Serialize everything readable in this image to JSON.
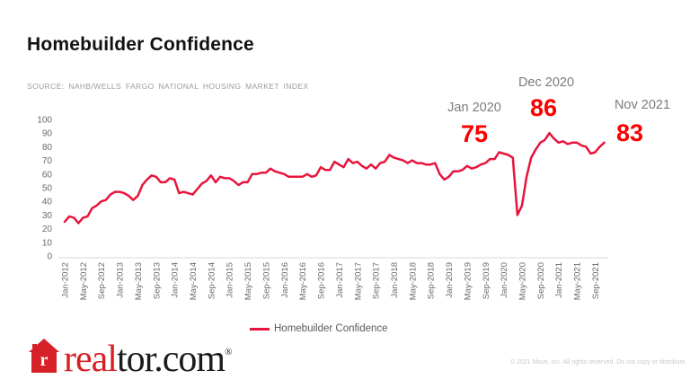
{
  "header": {
    "title": "Homebuilder Confidence",
    "source": "SOURCE: NAHB/WELLS FARGO NATIONAL HOUSING MARKET INDEX"
  },
  "annotations": [
    {
      "label": "Jan 2020",
      "value": "75"
    },
    {
      "label": "Dec 2020",
      "value": "86"
    },
    {
      "label": "Nov 2021",
      "value": "83"
    }
  ],
  "legend": {
    "label": "Homebuilder Confidence"
  },
  "logo": {
    "red_part": "real",
    "black_part": "tor.com",
    "registered": "®"
  },
  "footer": {
    "copyright": "© 2021 Move, Inc. All rights reserved. Do not copy or distribute."
  },
  "colors": {
    "line": "#e8143c",
    "annotation_value": "#fc0000",
    "annotation_label": "#7c7c7c",
    "tick": "#686868",
    "axis": "#d8d8d8",
    "brand_red": "#d62027"
  },
  "chart_data": {
    "type": "line",
    "title": "Homebuilder Confidence",
    "series_name": "Homebuilder Confidence",
    "x_frequency": "monthly",
    "x_range": [
      "Jan-2012",
      "Nov-2021"
    ],
    "x_tick_labels": [
      "Jan-2012",
      "May-2012",
      "Sep-2012",
      "Jan-2013",
      "May-2013",
      "Sep-2013",
      "Jan-2014",
      "May-2014",
      "Sep-2014",
      "Jan-2015",
      "May-2015",
      "Sep-2015",
      "Jan-2016",
      "May-2016",
      "Sep-2016",
      "Jan-2017",
      "May-2017",
      "Sep-2017",
      "Jan-2018",
      "May-2018",
      "Sep-2018",
      "Jan-2019",
      "May-2019",
      "Sep-2019",
      "Jan-2020",
      "May-2020",
      "Sep-2020",
      "Jan-2021",
      "May-2021",
      "Sep-2021"
    ],
    "x_tick_interval_months": 4,
    "yticks": [
      0,
      10,
      20,
      30,
      40,
      50,
      60,
      70,
      80,
      90,
      100
    ],
    "ylim": [
      0,
      100
    ],
    "grid": false,
    "legend_position": "bottom",
    "values": [
      25,
      29,
      28,
      24,
      28,
      29,
      35,
      37,
      40,
      41,
      45,
      47,
      47,
      46,
      44,
      41,
      44,
      52,
      56,
      59,
      58,
      54,
      54,
      57,
      56,
      46,
      47,
      46,
      45,
      49,
      53,
      55,
      59,
      54,
      58,
      57,
      57,
      55,
      52,
      54,
      54,
      60,
      60,
      61,
      61,
      64,
      62,
      61,
      60,
      58,
      58,
      58,
      58,
      60,
      58,
      59,
      65,
      63,
      63,
      69,
      67,
      65,
      71,
      68,
      69,
      66,
      64,
      67,
      64,
      68,
      69,
      74,
      72,
      71,
      70,
      68,
      70,
      68,
      68,
      67,
      67,
      68,
      60,
      56,
      58,
      62,
      62,
      63,
      66,
      64,
      65,
      67,
      68,
      71,
      71,
      76,
      75,
      74,
      72,
      30,
      37,
      58,
      72,
      78,
      83,
      85,
      90,
      86,
      83,
      84,
      82,
      83,
      83,
      81,
      80,
      75,
      76,
      80,
      83
    ]
  }
}
